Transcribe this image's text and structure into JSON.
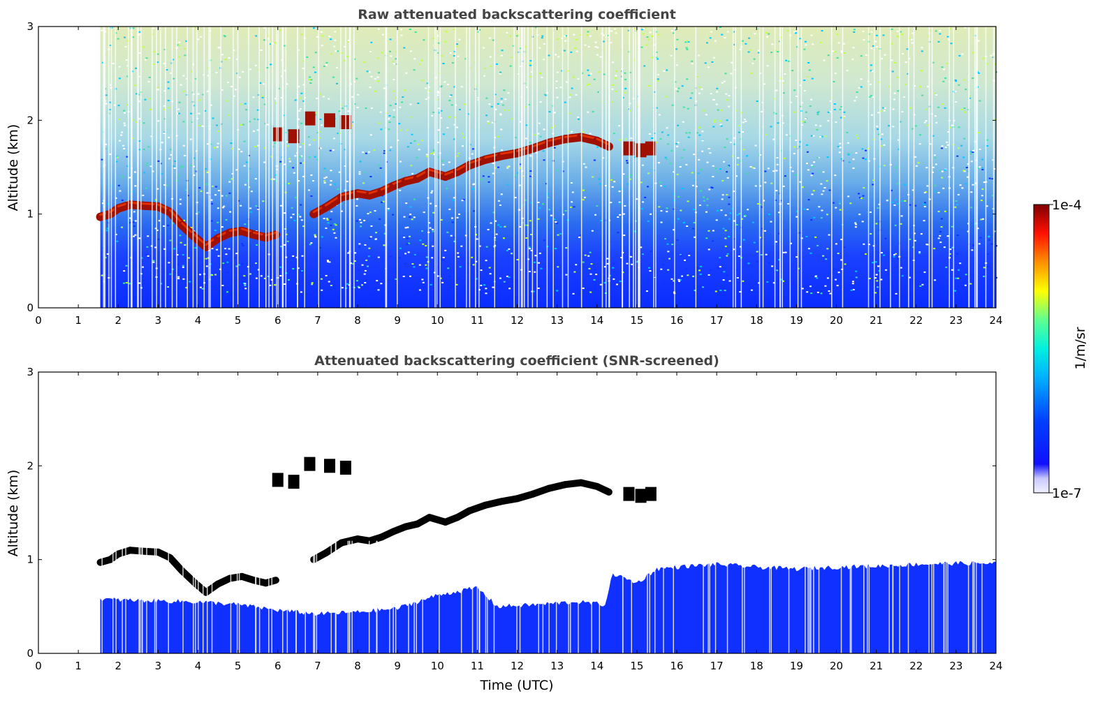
{
  "chart_data": [
    {
      "type": "heatmap",
      "title": "Raw attenuated backscattering coefficient",
      "xlabel": "",
      "ylabel": "Altitude (km)",
      "xlim": [
        0,
        24
      ],
      "ylim": [
        0,
        3
      ],
      "xticks": [
        "0",
        "1",
        "2",
        "3",
        "4",
        "5",
        "6",
        "7",
        "8",
        "9",
        "10",
        "11",
        "12",
        "13",
        "14",
        "15",
        "16",
        "17",
        "18",
        "19",
        "20",
        "21",
        "22",
        "23",
        "24"
      ],
      "yticks": [
        "0",
        "1",
        "2",
        "3"
      ],
      "data_start_time": 1.55,
      "cloud_layer": [
        [
          1.55,
          0.97
        ],
        [
          1.8,
          1.0
        ],
        [
          2.0,
          1.06
        ],
        [
          2.3,
          1.1
        ],
        [
          2.6,
          1.09
        ],
        [
          3.0,
          1.08
        ],
        [
          3.3,
          1.02
        ],
        [
          3.6,
          0.88
        ],
        [
          3.9,
          0.76
        ],
        [
          4.2,
          0.65
        ],
        [
          4.5,
          0.74
        ],
        [
          4.8,
          0.8
        ],
        [
          5.1,
          0.82
        ],
        [
          5.4,
          0.78
        ],
        [
          5.7,
          0.75
        ],
        [
          5.95,
          0.78
        ],
        [
          6.9,
          1.0
        ],
        [
          7.2,
          1.07
        ],
        [
          7.6,
          1.18
        ],
        [
          8.0,
          1.22
        ],
        [
          8.3,
          1.2
        ],
        [
          8.6,
          1.24
        ],
        [
          8.9,
          1.3
        ],
        [
          9.2,
          1.35
        ],
        [
          9.5,
          1.38
        ],
        [
          9.8,
          1.45
        ],
        [
          10.2,
          1.4
        ],
        [
          10.5,
          1.45
        ],
        [
          10.8,
          1.52
        ],
        [
          11.2,
          1.58
        ],
        [
          11.6,
          1.62
        ],
        [
          12.0,
          1.65
        ],
        [
          12.4,
          1.7
        ],
        [
          12.8,
          1.76
        ],
        [
          13.2,
          1.8
        ],
        [
          13.6,
          1.82
        ],
        [
          14.0,
          1.78
        ],
        [
          14.3,
          1.72
        ]
      ],
      "cloud_patches": [
        [
          6.0,
          1.85
        ],
        [
          6.4,
          1.83
        ],
        [
          6.8,
          2.02
        ],
        [
          7.3,
          2.0
        ],
        [
          7.7,
          1.98
        ],
        [
          14.8,
          1.7
        ],
        [
          15.1,
          1.68
        ],
        [
          15.35,
          1.7
        ]
      ]
    },
    {
      "type": "heatmap",
      "title": "Attenuated backscattering coefficient (SNR-screened)",
      "xlabel": "Time (UTC)",
      "ylabel": "Altitude (km)",
      "xlim": [
        0,
        24
      ],
      "ylim": [
        0,
        3
      ],
      "xticks": [
        "0",
        "1",
        "2",
        "3",
        "4",
        "5",
        "6",
        "7",
        "8",
        "9",
        "10",
        "11",
        "12",
        "13",
        "14",
        "15",
        "16",
        "17",
        "18",
        "19",
        "20",
        "21",
        "22",
        "23",
        "24"
      ],
      "yticks": [
        "0",
        "1",
        "2",
        "3"
      ],
      "data_start_time": 1.55,
      "boundary_layer_top": [
        [
          1.55,
          0.58
        ],
        [
          2.0,
          0.57
        ],
        [
          3.0,
          0.56
        ],
        [
          4.0,
          0.55
        ],
        [
          5.0,
          0.52
        ],
        [
          6.0,
          0.46
        ],
        [
          7.0,
          0.42
        ],
        [
          8.0,
          0.44
        ],
        [
          9.0,
          0.48
        ],
        [
          10.0,
          0.62
        ],
        [
          11.0,
          0.7
        ],
        [
          11.5,
          0.5
        ],
        [
          12.5,
          0.52
        ],
        [
          13.5,
          0.55
        ],
        [
          14.2,
          0.52
        ],
        [
          14.4,
          0.85
        ],
        [
          15.0,
          0.75
        ],
        [
          15.5,
          0.9
        ],
        [
          16.0,
          0.92
        ],
        [
          17.0,
          0.95
        ],
        [
          18.0,
          0.92
        ],
        [
          19.0,
          0.9
        ],
        [
          20.0,
          0.92
        ],
        [
          21.0,
          0.93
        ],
        [
          22.0,
          0.95
        ],
        [
          23.0,
          0.96
        ],
        [
          24.0,
          0.96
        ]
      ]
    }
  ],
  "colorbar": {
    "label": "1/m/sr",
    "max_label": "1e-4",
    "min_label": "1e-7",
    "colors": [
      "#e8e8ff",
      "#1010ff",
      "#0050ff",
      "#00a0ff",
      "#00e0ff",
      "#40ffb0",
      "#a0ff40",
      "#ffff00",
      "#ffc000",
      "#ff6000",
      "#ff0000",
      "#b00000",
      "#800000"
    ]
  }
}
